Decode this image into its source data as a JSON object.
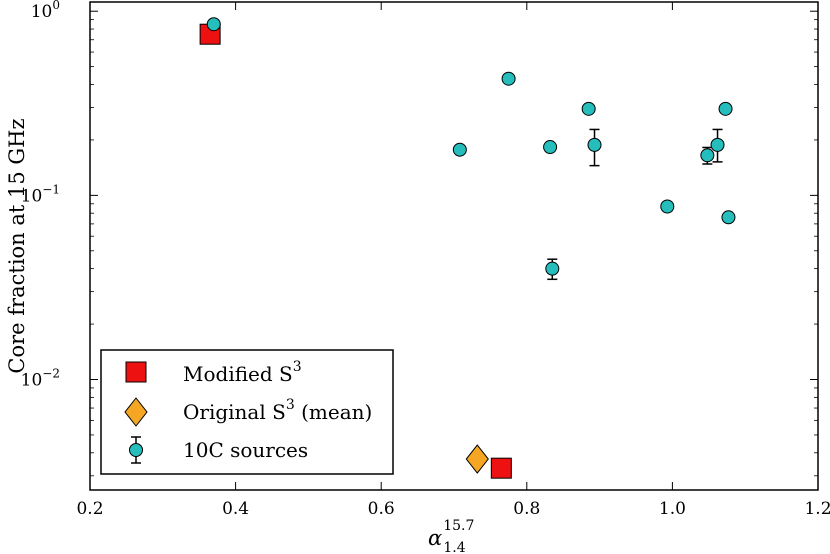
{
  "chart_data": {
    "type": "scatter",
    "title": "",
    "xlabel": {
      "base": "α",
      "sup": "15.7",
      "sub": "1.4"
    },
    "ylabel": "Core fraction at 15 GHz",
    "xlim": [
      0.2,
      1.2
    ],
    "ylim_log10": [
      -2.6,
      0.05
    ],
    "y_scale": "log",
    "x_ticks": [
      "0.2",
      "0.4",
      "0.6",
      "0.8",
      "1.0",
      "1.2"
    ],
    "y_ticks": [
      {
        "base": "10",
        "exp": "0",
        "log": 0
      },
      {
        "base": "10",
        "exp": "−1",
        "log": -1
      },
      {
        "base": "10",
        "exp": "−2",
        "log": -2
      }
    ],
    "legend_position": "lower-left",
    "series": [
      {
        "name": "Modified S",
        "name_sup": "3",
        "marker": "square",
        "color": "#ee1111",
        "points": [
          {
            "x": 0.365,
            "y": 0.75
          },
          {
            "x": 0.765,
            "y": 0.0033
          }
        ]
      },
      {
        "name": "Original S",
        "name_sup": "3",
        "name_suffix": " (mean)",
        "marker": "diamond",
        "color": "#f5a623",
        "points": [
          {
            "x": 0.732,
            "y": 0.0037
          }
        ]
      },
      {
        "name": "10C sources",
        "marker": "circle",
        "color": "#26bdbd",
        "points": [
          {
            "x": 0.37,
            "y": 0.85
          },
          {
            "x": 0.775,
            "y": 0.43
          },
          {
            "x": 0.708,
            "y": 0.177
          },
          {
            "x": 0.832,
            "y": 0.183
          },
          {
            "x": 0.885,
            "y": 0.295
          },
          {
            "x": 0.893,
            "y": 0.188,
            "ylo": 0.145,
            "yhi": 0.228
          },
          {
            "x": 0.993,
            "y": 0.087
          },
          {
            "x": 1.048,
            "y": 0.165,
            "ylo": 0.148,
            "yhi": 0.182
          },
          {
            "x": 1.062,
            "y": 0.188,
            "ylo": 0.152,
            "yhi": 0.228
          },
          {
            "x": 1.073,
            "y": 0.295
          },
          {
            "x": 1.077,
            "y": 0.076
          },
          {
            "x": 0.835,
            "y": 0.04,
            "ylo": 0.035,
            "yhi": 0.045
          }
        ]
      }
    ]
  }
}
